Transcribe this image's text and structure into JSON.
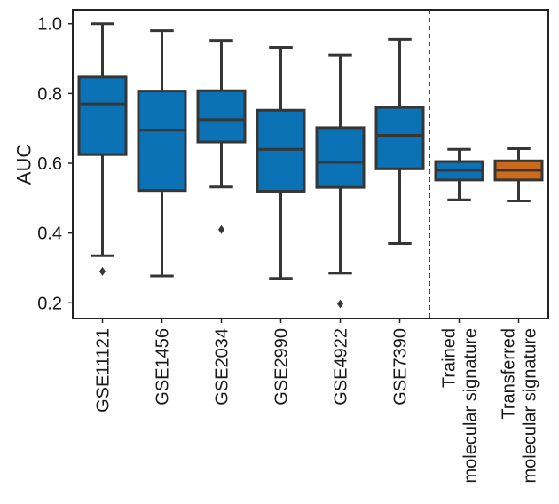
{
  "chart_data": {
    "type": "box",
    "ylabel": "AUC",
    "xlabel": "",
    "ylim": [
      0.155,
      1.04
    ],
    "yticks": [
      0.2,
      0.4,
      0.6,
      0.8,
      1.0
    ],
    "ytick_labels": [
      "0.2",
      "0.4",
      "0.6",
      "0.8",
      "1.0"
    ],
    "grid": false,
    "separator_after_index": 5,
    "boxes": [
      {
        "label": [
          "GSE11121"
        ],
        "color": "#0a72b5",
        "q1": 0.625,
        "median": 0.77,
        "q3": 0.847,
        "whisker_low": 0.335,
        "whisker_high": 1.0,
        "outliers": [
          0.29
        ]
      },
      {
        "label": [
          "GSE1456"
        ],
        "color": "#0a72b5",
        "q1": 0.522,
        "median": 0.695,
        "q3": 0.807,
        "whisker_low": 0.277,
        "whisker_high": 0.98,
        "outliers": []
      },
      {
        "label": [
          "GSE2034"
        ],
        "color": "#0a72b5",
        "q1": 0.661,
        "median": 0.725,
        "q3": 0.808,
        "whisker_low": 0.532,
        "whisker_high": 0.952,
        "outliers": [
          0.41
        ]
      },
      {
        "label": [
          "GSE2990"
        ],
        "color": "#0a72b5",
        "q1": 0.52,
        "median": 0.64,
        "q3": 0.752,
        "whisker_low": 0.27,
        "whisker_high": 0.932,
        "outliers": []
      },
      {
        "label": [
          "GSE4922"
        ],
        "color": "#0a72b5",
        "q1": 0.531,
        "median": 0.603,
        "q3": 0.702,
        "whisker_low": 0.285,
        "whisker_high": 0.91,
        "outliers": [
          0.197
        ]
      },
      {
        "label": [
          "GSE7390"
        ],
        "color": "#0a72b5",
        "q1": 0.584,
        "median": 0.68,
        "q3": 0.76,
        "whisker_low": 0.37,
        "whisker_high": 0.955,
        "outliers": []
      },
      {
        "label": [
          "Trained",
          "molecular signature"
        ],
        "color": "#0a72b5",
        "q1": 0.552,
        "median": 0.58,
        "q3": 0.605,
        "whisker_low": 0.495,
        "whisker_high": 0.64,
        "outliers": []
      },
      {
        "label": [
          "Transferred",
          "molecular signature"
        ],
        "color": "#cc6a1b",
        "q1": 0.552,
        "median": 0.58,
        "q3": 0.607,
        "whisker_low": 0.492,
        "whisker_high": 0.642,
        "outliers": []
      }
    ]
  }
}
